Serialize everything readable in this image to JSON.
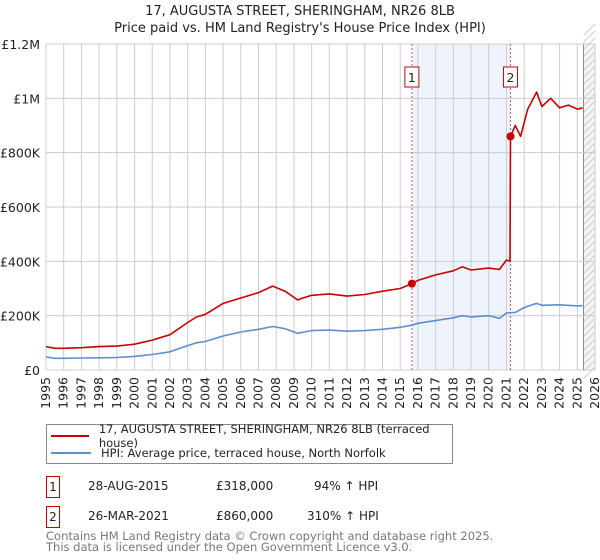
{
  "title_line1": "17, AUGUSTA STREET, SHERINGHAM, NR26 8LB",
  "title_line2": "Price paid vs. HM Land Registry's House Price Index (HPI)",
  "chart_data": {
    "type": "line",
    "title": "17, AUGUSTA STREET, SHERINGHAM, NR26 8LB — Price paid vs. HM Land Registry's House Price Index (HPI)",
    "xlim": [
      1995,
      2026
    ],
    "ylim": [
      0,
      1200000
    ],
    "x_ticks": [
      "1995",
      "1996",
      "1997",
      "1998",
      "1999",
      "2000",
      "2001",
      "2002",
      "2003",
      "2004",
      "2005",
      "2006",
      "2007",
      "2008",
      "2009",
      "2010",
      "2011",
      "2012",
      "2013",
      "2014",
      "2015",
      "2016",
      "2017",
      "2018",
      "2019",
      "2020",
      "2021",
      "2022",
      "2023",
      "2024",
      "2025",
      "2026"
    ],
    "y_ticks": [
      {
        "v": 0,
        "label": "£0"
      },
      {
        "v": 200000,
        "label": "£200K"
      },
      {
        "v": 400000,
        "label": "£400K"
      },
      {
        "v": 600000,
        "label": "£600K"
      },
      {
        "v": 800000,
        "label": "£800K"
      },
      {
        "v": 1000000,
        "label": "£1M"
      },
      {
        "v": 1200000,
        "label": "£1.2M"
      }
    ],
    "grid": true,
    "shaded_range": [
      2015.66,
      2021.23
    ],
    "forecast_hatch_from": 2025.35,
    "series": [
      {
        "name": "17, AUGUSTA STREET, SHERINGHAM, NR26 8LB (terraced house)",
        "color": "#cc0000",
        "x": [
          1995,
          1995.5,
          1996,
          1997,
          1998,
          1999,
          2000,
          2001,
          2002,
          2003,
          2003.5,
          2004,
          2005,
          2006,
          2007,
          2007.8,
          2008.5,
          2009.2,
          2010,
          2011,
          2012,
          2013,
          2014,
          2015,
          2015.66,
          2016,
          2017,
          2018,
          2018.5,
          2019,
          2020,
          2020.6,
          2021,
          2021.2,
          2021.23,
          2021.5,
          2021.8,
          2022.2,
          2022.7,
          2023,
          2023.5,
          2024,
          2024.5,
          2025,
          2025.3
        ],
        "y": [
          86000,
          80000,
          80000,
          82000,
          86000,
          88000,
          95000,
          110000,
          130000,
          175000,
          195000,
          205000,
          245000,
          265000,
          285000,
          309000,
          290000,
          258000,
          275000,
          280000,
          272000,
          278000,
          290000,
          300000,
          318000,
          330000,
          350000,
          365000,
          380000,
          368000,
          375000,
          370000,
          405000,
          400000,
          860000,
          900000,
          860000,
          960000,
          1023000,
          970000,
          1000000,
          965000,
          975000,
          960000,
          965000
        ]
      },
      {
        "name": "HPI: Average price, terraced house, North Norfolk",
        "color": "#5b8fd4",
        "x": [
          1995,
          1995.5,
          1996,
          1997,
          1998,
          1999,
          2000,
          2001,
          2002,
          2003,
          2003.5,
          2004,
          2005,
          2006,
          2007,
          2007.8,
          2008.5,
          2009.2,
          2010,
          2011,
          2012,
          2013,
          2014,
          2015,
          2015.66,
          2016,
          2017,
          2018,
          2018.5,
          2019,
          2020,
          2020.6,
          2021,
          2021.5,
          2022,
          2022.7,
          2023,
          2024,
          2025,
          2025.3
        ],
        "y": [
          48000,
          43000,
          43000,
          44000,
          45000,
          46000,
          50000,
          57000,
          67000,
          90000,
          100000,
          105000,
          125000,
          140000,
          150000,
          160000,
          152000,
          135000,
          145000,
          147000,
          143000,
          145000,
          150000,
          157000,
          165000,
          172000,
          182000,
          192000,
          200000,
          195000,
          200000,
          190000,
          210000,
          212000,
          230000,
          245000,
          238000,
          240000,
          236000,
          237000
        ]
      }
    ],
    "sales": [
      {
        "id": "1",
        "x": 2015.66,
        "y": 318000
      },
      {
        "id": "2",
        "x": 2021.23,
        "y": 860000
      }
    ]
  },
  "legend": {
    "property": "17, AUGUSTA STREET, SHERINGHAM, NR26 8LB (terraced house)",
    "hpi": "HPI: Average price, terraced house, North Norfolk"
  },
  "transactions": [
    {
      "id": "1",
      "date": "28-AUG-2015",
      "price": "£318,000",
      "hpi": "94% ↑ HPI"
    },
    {
      "id": "2",
      "date": "26-MAR-2021",
      "price": "£860,000",
      "hpi": "310% ↑ HPI"
    }
  ],
  "footer_line1": "Contains HM Land Registry data © Crown copyright and database right 2025.",
  "footer_line2": "This data is licensed under the Open Government Licence v3.0.",
  "colors": {
    "red": "#cc0000",
    "blue": "#5b8fd4",
    "shade": "#eef3fc",
    "grid": "#cccccc"
  }
}
